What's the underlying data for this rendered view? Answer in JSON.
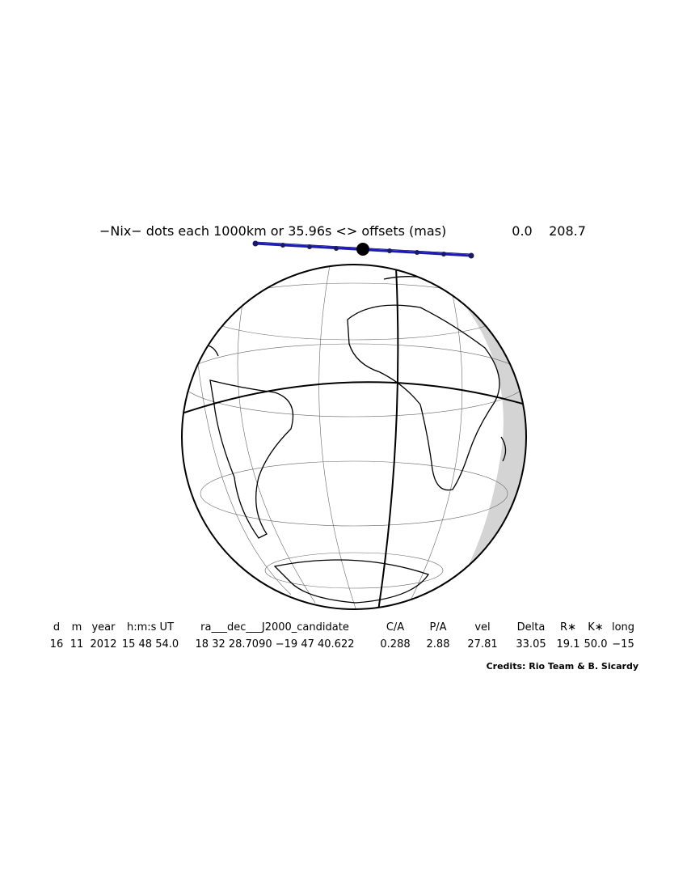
{
  "header": {
    "title": "−Nix−  dots each 1000km or 35.96s <> offsets (mas)",
    "offsets": [
      "0.0",
      "208.7"
    ]
  },
  "table": {
    "columns": [
      "d",
      "m",
      "year",
      "h:m:s UT",
      "ra___dec___J2000_candidate",
      "C/A",
      "P/A",
      "vel",
      "Delta",
      "R∗",
      "K∗",
      "long"
    ],
    "rows": [
      [
        "16",
        "11",
        "2012",
        "15 48 54.0",
        "18 32 28.7090 −19 47 40.622",
        "0.288",
        "2.88",
        "27.81",
        "33.05",
        "19.1",
        "50.0",
        "−15"
      ]
    ]
  },
  "credits": "Credits: Rio Team & B. Sicardy"
}
